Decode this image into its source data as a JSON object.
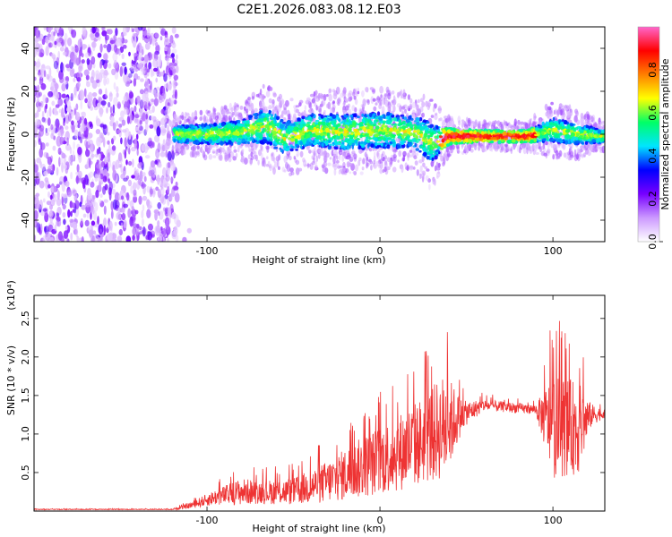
{
  "title": "C2E1.2026.083.08.12.E03",
  "chart_data": [
    {
      "type": "heatmap",
      "name": "spectrogram",
      "xlabel": "Height of straight line (km)",
      "ylabel": "Frequency (Hz)",
      "xlim": [
        -200,
        130
      ],
      "ylim": [
        -50,
        50
      ],
      "xticks": [
        -100,
        0,
        100
      ],
      "xtick_labels": [
        "-100",
        "0",
        "100"
      ],
      "yticks": [
        -40,
        -20,
        0,
        20,
        40
      ],
      "ytick_labels": [
        "-40",
        "-20",
        "0",
        "20",
        "40"
      ],
      "noise_region_x": [
        -200,
        -110
      ],
      "signal_band": [
        {
          "x": -118,
          "center": 0,
          "half_width": 4
        },
        {
          "x": -100,
          "center": 0,
          "half_width": 5
        },
        {
          "x": -80,
          "center": 1,
          "half_width": 6
        },
        {
          "x": -65,
          "center": 4,
          "half_width": 9
        },
        {
          "x": -55,
          "center": -2,
          "half_width": 8
        },
        {
          "x": -40,
          "center": 2,
          "half_width": 8
        },
        {
          "x": -20,
          "center": 1,
          "half_width": 9
        },
        {
          "x": 0,
          "center": 2,
          "half_width": 9
        },
        {
          "x": 20,
          "center": 1,
          "half_width": 8
        },
        {
          "x": 30,
          "center": -4,
          "half_width": 10
        },
        {
          "x": 40,
          "center": -1,
          "half_width": 4
        },
        {
          "x": 60,
          "center": -1,
          "half_width": 3
        },
        {
          "x": 85,
          "center": -1,
          "half_width": 3
        },
        {
          "x": 100,
          "center": 2,
          "half_width": 6
        },
        {
          "x": 115,
          "center": 0,
          "half_width": 5
        },
        {
          "x": 130,
          "center": -1,
          "half_width": 3
        }
      ],
      "colorbar": {
        "label": "Normalized spectral amplitude",
        "range": [
          0,
          1
        ],
        "ticks": [
          0.0,
          0.2,
          0.4,
          0.6,
          0.8
        ],
        "tick_labels": [
          "0.0",
          "0.2",
          "0.4",
          "0.6",
          "0.8"
        ],
        "colors": [
          "#ffffff",
          "#cc99ff",
          "#7700ff",
          "#0000ff",
          "#00e5ff",
          "#00ff66",
          "#ffff00",
          "#ff7f00",
          "#ff0000",
          "#ff66cc"
        ]
      }
    },
    {
      "type": "line",
      "name": "snr",
      "xlabel": "Height of straight line (km)",
      "ylabel": "SNR (10 * v/v)",
      "scale_label": "(x10⁴)",
      "xlim": [
        -200,
        130
      ],
      "ylim": [
        0,
        2.8
      ],
      "xticks": [
        -100,
        0,
        100
      ],
      "xtick_labels": [
        "-100",
        "0",
        "100"
      ],
      "yticks": [
        0.5,
        1.0,
        1.5,
        2.0,
        2.5
      ],
      "ytick_labels": [
        "0.5",
        "1.0",
        "1.5",
        "2.0",
        "2.5"
      ],
      "series_color": "#ee3333",
      "envelope": [
        {
          "x": -200,
          "base": 0.02,
          "amp": 0.01
        },
        {
          "x": -120,
          "base": 0.02,
          "amp": 0.01
        },
        {
          "x": -110,
          "base": 0.06,
          "amp": 0.08
        },
        {
          "x": -95,
          "base": 0.15,
          "amp": 0.2
        },
        {
          "x": -80,
          "base": 0.2,
          "amp": 0.35
        },
        {
          "x": -70,
          "base": 0.2,
          "amp": 0.3
        },
        {
          "x": -50,
          "base": 0.2,
          "amp": 0.35
        },
        {
          "x": -30,
          "base": 0.3,
          "amp": 0.55
        },
        {
          "x": -10,
          "base": 0.45,
          "amp": 0.8
        },
        {
          "x": 10,
          "base": 0.6,
          "amp": 1.0
        },
        {
          "x": 25,
          "base": 0.75,
          "amp": 1.15
        },
        {
          "x": 38,
          "base": 0.9,
          "amp": 1.4
        },
        {
          "x": 48,
          "base": 1.2,
          "amp": 0.35
        },
        {
          "x": 60,
          "base": 1.35,
          "amp": 0.15
        },
        {
          "x": 90,
          "base": 1.3,
          "amp": 0.12
        },
        {
          "x": 100,
          "base": 0.9,
          "amp": 1.35
        },
        {
          "x": 115,
          "base": 0.9,
          "amp": 1.2
        },
        {
          "x": 122,
          "base": 1.2,
          "amp": 0.3
        },
        {
          "x": 130,
          "base": 1.25,
          "amp": 0.1
        }
      ]
    }
  ]
}
